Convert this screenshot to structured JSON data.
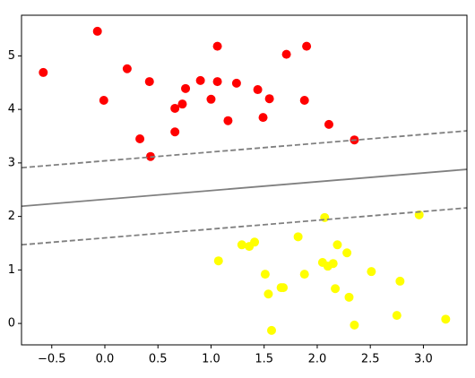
{
  "chart_data": {
    "type": "scatter",
    "xlim": [
      -0.785,
      3.41
    ],
    "ylim": [
      -0.4,
      5.76
    ],
    "xticks": [
      {
        "value": -0.5,
        "label": "−0.5"
      },
      {
        "value": 0,
        "label": "0.0"
      },
      0.5,
      {
        "value": 1,
        "label": "1.0"
      },
      1.5,
      {
        "value": 2,
        "label": "2.0"
      },
      2.5,
      {
        "value": 3,
        "label": "3.0"
      }
    ],
    "yticks": [
      0,
      1,
      2,
      3,
      4,
      5
    ],
    "series": [
      {
        "color": "#ff0000",
        "mode": "markers",
        "x": [
          -0.58,
          -0.07,
          -0.01,
          0.21,
          0.42,
          0.33,
          0.43,
          0.66,
          0.66,
          0.73,
          0.76,
          0.9,
          1.0,
          1.06,
          1.06,
          1.16,
          1.24,
          1.44,
          1.49,
          1.55,
          1.71,
          1.9,
          1.88,
          2.11,
          2.35
        ],
        "values": [
          4.69,
          5.46,
          4.17,
          4.76,
          4.52,
          3.45,
          3.12,
          4.02,
          3.58,
          4.1,
          4.39,
          4.54,
          4.19,
          5.18,
          4.52,
          3.79,
          4.49,
          4.37,
          3.85,
          4.2,
          5.03,
          5.18,
          4.17,
          3.72,
          3.43
        ]
      },
      {
        "color": "#ffff00",
        "mode": "markers",
        "x": [
          1.07,
          1.29,
          1.36,
          1.41,
          1.51,
          1.54,
          1.57,
          1.66,
          1.68,
          1.82,
          1.88,
          2.07,
          2.05,
          2.1,
          2.15,
          2.19,
          2.17,
          2.28,
          2.3,
          2.35,
          2.51,
          2.75,
          2.78,
          2.96,
          3.21
        ],
        "values": [
          1.17,
          1.47,
          1.44,
          1.52,
          0.92,
          0.55,
          -0.13,
          0.67,
          0.67,
          1.62,
          0.92,
          1.98,
          1.14,
          1.07,
          1.12,
          1.47,
          0.65,
          1.32,
          0.49,
          -0.03,
          0.97,
          0.15,
          0.79,
          2.03,
          0.08
        ]
      },
      {
        "color": "#808080",
        "mode": "line",
        "dash": true,
        "x": [
          -0.785,
          3.41
        ],
        "values": [
          2.91,
          3.6
        ]
      },
      {
        "color": "#808080",
        "mode": "line",
        "dash": false,
        "x": [
          -0.785,
          3.41
        ],
        "values": [
          2.19,
          2.88
        ]
      },
      {
        "color": "#808080",
        "mode": "line",
        "dash": true,
        "x": [
          -0.785,
          3.41
        ],
        "values": [
          1.47,
          2.16
        ]
      }
    ]
  }
}
